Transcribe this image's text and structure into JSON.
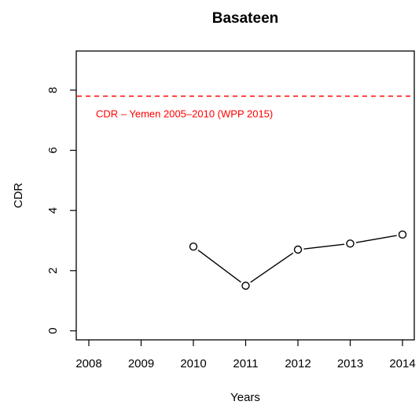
{
  "chart_data": {
    "type": "line",
    "title": "Basateen",
    "xlabel": "Years",
    "ylabel": "CDR",
    "xlim": [
      2008,
      2014
    ],
    "ylim": [
      -0.3,
      9.3
    ],
    "x_ticks": [
      "2008",
      "2009",
      "2010",
      "2011",
      "2012",
      "2013",
      "2014"
    ],
    "y_ticks": [
      "0",
      "2",
      "4",
      "6",
      "8"
    ],
    "grid": false,
    "series": [
      {
        "x": [
          2010,
          2011,
          2012,
          2013,
          2014
        ],
        "values": [
          2.8,
          1.5,
          2.7,
          2.9,
          3.2
        ],
        "color": "#000000",
        "marker": "open-circle"
      }
    ],
    "reference_line": {
      "y": 7.8,
      "color": "#ff0000",
      "style": "dashed",
      "label": "CDR – Yemen 2005–2010 (WPP 2015)"
    }
  }
}
